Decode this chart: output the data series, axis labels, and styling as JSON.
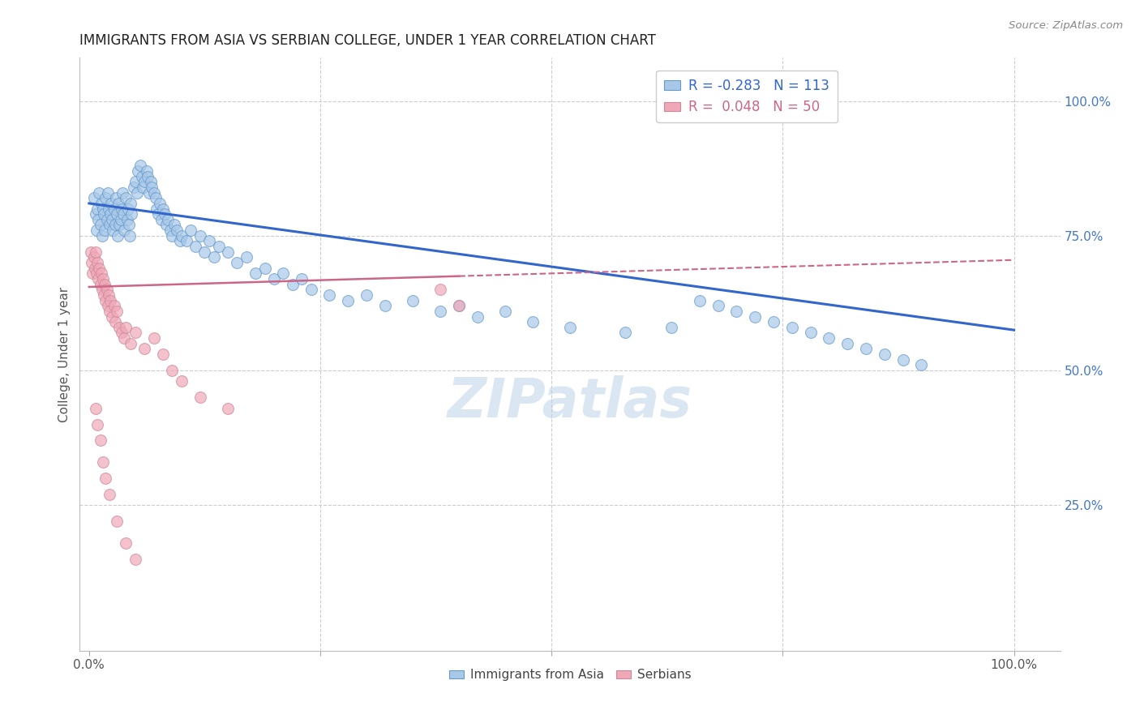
{
  "title": "IMMIGRANTS FROM ASIA VS SERBIAN COLLEGE, UNDER 1 YEAR CORRELATION CHART",
  "source": "Source: ZipAtlas.com",
  "ylabel": "College, Under 1 year",
  "right_ytick_labels": [
    "100.0%",
    "75.0%",
    "50.0%",
    "25.0%"
  ],
  "right_ytick_positions": [
    1.0,
    0.75,
    0.5,
    0.25
  ],
  "legend_blue_r": "R = -0.283",
  "legend_blue_n": "N = 113",
  "legend_pink_r": "R =  0.048",
  "legend_pink_n": "N = 50",
  "blue_color": "#a8c8e8",
  "pink_color": "#f0a8b8",
  "blue_line_color": "#3366cc",
  "pink_line_color": "#cc6688",
  "background_color": "#ffffff",
  "grid_color": "#cccccc",
  "legend_label_blue": "Immigrants from Asia",
  "legend_label_pink": "Serbians",
  "blue_scatter_x": [
    0.005,
    0.007,
    0.008,
    0.009,
    0.01,
    0.011,
    0.012,
    0.013,
    0.014,
    0.015,
    0.016,
    0.017,
    0.018,
    0.019,
    0.02,
    0.021,
    0.022,
    0.023,
    0.024,
    0.025,
    0.026,
    0.027,
    0.028,
    0.029,
    0.03,
    0.031,
    0.032,
    0.033,
    0.034,
    0.035,
    0.036,
    0.037,
    0.038,
    0.04,
    0.041,
    0.042,
    0.043,
    0.044,
    0.045,
    0.046,
    0.048,
    0.05,
    0.052,
    0.053,
    0.055,
    0.057,
    0.058,
    0.06,
    0.062,
    0.063,
    0.065,
    0.067,
    0.068,
    0.07,
    0.072,
    0.073,
    0.075,
    0.076,
    0.078,
    0.08,
    0.082,
    0.083,
    0.085,
    0.088,
    0.09,
    0.092,
    0.095,
    0.098,
    0.1,
    0.105,
    0.11,
    0.115,
    0.12,
    0.125,
    0.13,
    0.135,
    0.14,
    0.15,
    0.16,
    0.17,
    0.18,
    0.19,
    0.2,
    0.21,
    0.22,
    0.23,
    0.24,
    0.26,
    0.28,
    0.3,
    0.32,
    0.35,
    0.38,
    0.4,
    0.42,
    0.45,
    0.48,
    0.52,
    0.58,
    0.63,
    0.66,
    0.68,
    0.7,
    0.72,
    0.74,
    0.76,
    0.78,
    0.8,
    0.82,
    0.84,
    0.86,
    0.88,
    0.9
  ],
  "blue_scatter_y": [
    0.82,
    0.79,
    0.76,
    0.8,
    0.78,
    0.83,
    0.77,
    0.81,
    0.75,
    0.8,
    0.79,
    0.76,
    0.82,
    0.78,
    0.83,
    0.8,
    0.77,
    0.79,
    0.81,
    0.78,
    0.76,
    0.8,
    0.77,
    0.82,
    0.79,
    0.75,
    0.81,
    0.77,
    0.78,
    0.8,
    0.83,
    0.79,
    0.76,
    0.82,
    0.78,
    0.8,
    0.77,
    0.75,
    0.81,
    0.79,
    0.84,
    0.85,
    0.83,
    0.87,
    0.88,
    0.86,
    0.84,
    0.85,
    0.87,
    0.86,
    0.83,
    0.85,
    0.84,
    0.83,
    0.82,
    0.8,
    0.79,
    0.81,
    0.78,
    0.8,
    0.79,
    0.77,
    0.78,
    0.76,
    0.75,
    0.77,
    0.76,
    0.74,
    0.75,
    0.74,
    0.76,
    0.73,
    0.75,
    0.72,
    0.74,
    0.71,
    0.73,
    0.72,
    0.7,
    0.71,
    0.68,
    0.69,
    0.67,
    0.68,
    0.66,
    0.67,
    0.65,
    0.64,
    0.63,
    0.64,
    0.62,
    0.63,
    0.61,
    0.62,
    0.6,
    0.61,
    0.59,
    0.58,
    0.57,
    0.58,
    0.63,
    0.62,
    0.61,
    0.6,
    0.59,
    0.58,
    0.57,
    0.56,
    0.55,
    0.54,
    0.53,
    0.52,
    0.51
  ],
  "pink_scatter_x": [
    0.002,
    0.003,
    0.004,
    0.005,
    0.006,
    0.007,
    0.008,
    0.009,
    0.01,
    0.011,
    0.012,
    0.013,
    0.014,
    0.015,
    0.016,
    0.017,
    0.018,
    0.019,
    0.02,
    0.021,
    0.022,
    0.023,
    0.025,
    0.027,
    0.028,
    0.03,
    0.033,
    0.035,
    0.038,
    0.04,
    0.045,
    0.05,
    0.06,
    0.07,
    0.08,
    0.09,
    0.1,
    0.12,
    0.15,
    0.38,
    0.4,
    0.007,
    0.009,
    0.012,
    0.015,
    0.018,
    0.022,
    0.03,
    0.04,
    0.05
  ],
  "pink_scatter_y": [
    0.72,
    0.7,
    0.68,
    0.71,
    0.69,
    0.72,
    0.68,
    0.7,
    0.67,
    0.69,
    0.66,
    0.68,
    0.65,
    0.67,
    0.64,
    0.66,
    0.63,
    0.65,
    0.62,
    0.64,
    0.61,
    0.63,
    0.6,
    0.62,
    0.59,
    0.61,
    0.58,
    0.57,
    0.56,
    0.58,
    0.55,
    0.57,
    0.54,
    0.56,
    0.53,
    0.5,
    0.48,
    0.45,
    0.43,
    0.65,
    0.62,
    0.43,
    0.4,
    0.37,
    0.33,
    0.3,
    0.27,
    0.22,
    0.18,
    0.15
  ],
  "blue_line_y_start": 0.81,
  "blue_line_y_end": 0.575,
  "pink_line_x_solid_end": 0.4,
  "pink_line_y_start": 0.655,
  "pink_line_y_end": 0.705,
  "ylim": [
    -0.02,
    1.08
  ],
  "xlim": [
    -0.01,
    1.05
  ]
}
